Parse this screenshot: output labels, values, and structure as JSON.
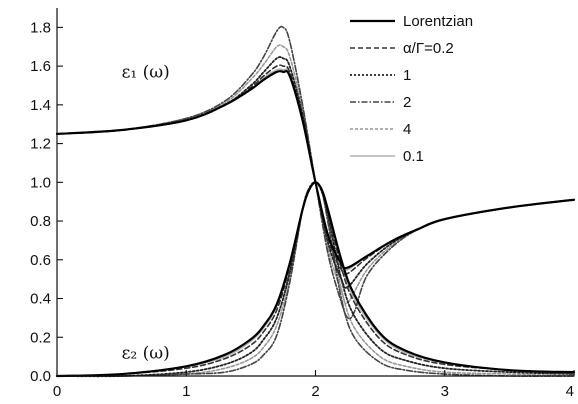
{
  "chart_data": {
    "type": "line",
    "title": "",
    "xlabel": "",
    "ylabel": "",
    "xlim": [
      0,
      4
    ],
    "ylim": [
      0,
      1.9
    ],
    "x_ticks": [
      0,
      1,
      2,
      3,
      4
    ],
    "x_tick_labels": [
      "0",
      "1",
      "2",
      "3",
      "4"
    ],
    "y_ticks": [
      0,
      0.2,
      0.4,
      0.6,
      0.8,
      1.0,
      1.2,
      1.4,
      1.6,
      1.8
    ],
    "y_tick_labels": [
      "0.0",
      "0.2",
      "0.4",
      "0.6",
      "0.8",
      "1.0",
      "1.2",
      "1.4",
      "1.6",
      "1.8"
    ],
    "grid": false,
    "legend_position": "top-right",
    "annotations": [
      {
        "text": "ε₁ (ω)",
        "x": 0.5,
        "y": 1.54
      },
      {
        "text": "ε₂ (ω)",
        "x": 0.5,
        "y": 0.09
      }
    ],
    "series": [
      {
        "name": "Lorentzian",
        "style": "solid",
        "color": "#000000",
        "eps1": {
          "x": [
            0,
            0.5,
            1.0,
            1.3,
            1.5,
            1.6,
            1.7,
            1.75,
            1.8,
            1.9,
            2.0,
            2.1,
            2.2,
            2.25,
            2.4,
            2.6,
            2.8,
            3.0,
            3.5,
            4.0
          ],
          "y": [
            1.25,
            1.27,
            1.32,
            1.4,
            1.48,
            1.53,
            1.57,
            1.57,
            1.55,
            1.32,
            1.0,
            0.72,
            0.58,
            0.56,
            0.62,
            0.7,
            0.76,
            0.81,
            0.87,
            0.91
          ]
        },
        "eps2": {
          "x": [
            0,
            0.5,
            1.0,
            1.3,
            1.5,
            1.6,
            1.7,
            1.8,
            1.9,
            1.95,
            2.0,
            2.05,
            2.1,
            2.2,
            2.3,
            2.5,
            2.7,
            3.0,
            3.5,
            4.0
          ],
          "y": [
            0.0,
            0.01,
            0.05,
            0.11,
            0.19,
            0.26,
            0.37,
            0.58,
            0.86,
            0.96,
            1.0,
            0.96,
            0.85,
            0.6,
            0.42,
            0.22,
            0.13,
            0.07,
            0.03,
            0.02
          ]
        }
      },
      {
        "name": "α/Γ=0.2",
        "style": "dashed",
        "color": "#333333",
        "eps1": {
          "x": [
            0,
            0.5,
            1.0,
            1.3,
            1.5,
            1.6,
            1.7,
            1.75,
            1.8,
            1.9,
            2.0,
            2.1,
            2.2,
            2.25,
            2.4,
            2.6,
            2.8,
            3.0,
            3.5,
            4.0
          ],
          "y": [
            1.25,
            1.27,
            1.32,
            1.4,
            1.49,
            1.55,
            1.6,
            1.6,
            1.57,
            1.33,
            1.0,
            0.7,
            0.55,
            0.53,
            0.61,
            0.7,
            0.76,
            0.81,
            0.87,
            0.91
          ]
        },
        "eps2": {
          "x": [
            0,
            0.5,
            1.0,
            1.3,
            1.5,
            1.6,
            1.7,
            1.8,
            1.9,
            1.95,
            2.0,
            2.05,
            2.1,
            2.2,
            2.3,
            2.5,
            2.7,
            3.0,
            3.5,
            4.0
          ],
          "y": [
            0.0,
            0.01,
            0.04,
            0.09,
            0.16,
            0.23,
            0.34,
            0.56,
            0.86,
            0.96,
            1.0,
            0.96,
            0.84,
            0.56,
            0.38,
            0.19,
            0.11,
            0.06,
            0.03,
            0.01
          ]
        }
      },
      {
        "name": "1",
        "style": "dotted",
        "color": "#222222",
        "eps1": {
          "x": [
            0,
            0.5,
            1.0,
            1.3,
            1.5,
            1.6,
            1.7,
            1.75,
            1.8,
            1.9,
            2.0,
            2.1,
            2.2,
            2.25,
            2.4,
            2.6,
            2.8,
            3.0,
            3.5,
            4.0
          ],
          "y": [
            1.25,
            1.27,
            1.32,
            1.4,
            1.5,
            1.57,
            1.64,
            1.64,
            1.6,
            1.35,
            1.0,
            0.68,
            0.5,
            0.46,
            0.58,
            0.69,
            0.76,
            0.81,
            0.87,
            0.91
          ]
        },
        "eps2": {
          "x": [
            0,
            0.5,
            1.0,
            1.3,
            1.5,
            1.6,
            1.7,
            1.8,
            1.9,
            1.95,
            2.0,
            2.05,
            2.1,
            2.2,
            2.3,
            2.5,
            2.7,
            3.0,
            3.5,
            4.0
          ],
          "y": [
            0.0,
            0.0,
            0.02,
            0.06,
            0.12,
            0.19,
            0.3,
            0.53,
            0.86,
            0.96,
            1.0,
            0.95,
            0.82,
            0.5,
            0.31,
            0.14,
            0.08,
            0.04,
            0.02,
            0.01
          ]
        }
      },
      {
        "name": "2",
        "style": "dashdot",
        "color": "#444444",
        "eps1": {
          "x": [
            0,
            0.5,
            1.0,
            1.3,
            1.5,
            1.6,
            1.7,
            1.75,
            1.8,
            1.9,
            2.0,
            2.1,
            2.2,
            2.25,
            2.3,
            2.4,
            2.6,
            2.8,
            3.0,
            3.5,
            4.0
          ],
          "y": [
            1.25,
            1.27,
            1.33,
            1.42,
            1.55,
            1.65,
            1.78,
            1.8,
            1.73,
            1.4,
            1.0,
            0.62,
            0.38,
            0.3,
            0.33,
            0.52,
            0.67,
            0.76,
            0.81,
            0.87,
            0.91
          ]
        },
        "eps2": {
          "x": [
            0,
            0.5,
            1.0,
            1.3,
            1.5,
            1.6,
            1.7,
            1.8,
            1.9,
            1.95,
            2.0,
            2.05,
            2.1,
            2.2,
            2.3,
            2.5,
            2.7,
            3.0,
            3.5,
            4.0
          ],
          "y": [
            0.0,
            0.0,
            0.01,
            0.02,
            0.06,
            0.11,
            0.21,
            0.48,
            0.86,
            0.97,
            1.0,
            0.95,
            0.78,
            0.4,
            0.2,
            0.07,
            0.03,
            0.01,
            0.0,
            0.0
          ]
        }
      },
      {
        "name": "4",
        "style": "dashed-light",
        "color": "#999999",
        "eps1": {
          "x": [
            0,
            0.5,
            1.0,
            1.3,
            1.5,
            1.6,
            1.7,
            1.75,
            1.8,
            1.9,
            2.0,
            2.1,
            2.2,
            2.25,
            2.4,
            2.6,
            2.8,
            3.0,
            3.5,
            4.0
          ],
          "y": [
            1.25,
            1.27,
            1.33,
            1.41,
            1.53,
            1.61,
            1.7,
            1.7,
            1.65,
            1.38,
            1.0,
            0.65,
            0.44,
            0.38,
            0.55,
            0.68,
            0.76,
            0.81,
            0.87,
            0.91
          ]
        },
        "eps2": {
          "x": [
            0,
            0.5,
            1.0,
            1.3,
            1.5,
            1.6,
            1.7,
            1.8,
            1.9,
            1.95,
            2.0,
            2.05,
            2.1,
            2.2,
            2.3,
            2.5,
            2.7,
            3.0,
            3.5,
            4.0
          ],
          "y": [
            0.0,
            0.0,
            0.01,
            0.04,
            0.09,
            0.15,
            0.26,
            0.5,
            0.86,
            0.96,
            1.0,
            0.95,
            0.8,
            0.45,
            0.25,
            0.1,
            0.05,
            0.02,
            0.01,
            0.0
          ]
        }
      },
      {
        "name": "0.1",
        "style": "solid-light",
        "color": "#b0b0b0",
        "eps1": {
          "x": [
            0,
            0.5,
            1.0,
            1.3,
            1.5,
            1.6,
            1.7,
            1.75,
            1.8,
            1.9,
            2.0,
            2.1,
            2.2,
            2.25,
            2.4,
            2.6,
            2.8,
            3.0,
            3.5,
            4.0
          ],
          "y": [
            1.25,
            1.27,
            1.32,
            1.4,
            1.48,
            1.54,
            1.58,
            1.58,
            1.56,
            1.32,
            1.0,
            0.71,
            0.57,
            0.55,
            0.62,
            0.7,
            0.76,
            0.81,
            0.87,
            0.91
          ]
        },
        "eps2": {
          "x": [
            0,
            0.5,
            1.0,
            1.3,
            1.5,
            1.6,
            1.7,
            1.8,
            1.9,
            1.95,
            2.0,
            2.05,
            2.1,
            2.2,
            2.3,
            2.5,
            2.7,
            3.0,
            3.5,
            4.0
          ],
          "y": [
            0.0,
            0.01,
            0.05,
            0.1,
            0.18,
            0.25,
            0.36,
            0.57,
            0.86,
            0.96,
            1.0,
            0.96,
            0.85,
            0.58,
            0.4,
            0.21,
            0.12,
            0.07,
            0.03,
            0.02
          ]
        }
      }
    ]
  }
}
